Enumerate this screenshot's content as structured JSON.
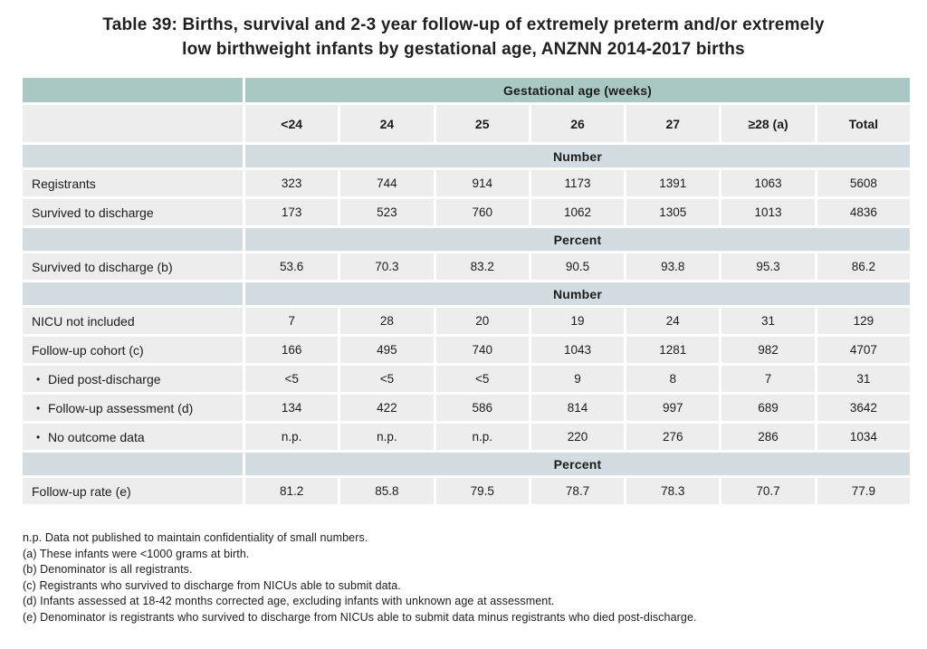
{
  "title": {
    "line1": "Table 39: Births, survival and 2-3 year follow-up of extremely preterm and/or extremely",
    "line2": "low birthweight infants by gestational age, ANZNN 2014-2017 births"
  },
  "colors": {
    "header_teal": "#a9c8c3",
    "section_band": "#d3dde1",
    "row_bg": "#ededed",
    "text": "#1c1c1c"
  },
  "icons": {
    "bullet": "•"
  },
  "table": {
    "group_header": "Gestational age (weeks)",
    "columns": [
      "<24",
      "24",
      "25",
      "26",
      "27",
      "≥28 (a)",
      "Total"
    ],
    "rows": [
      {
        "type": "section",
        "label": "Number"
      },
      {
        "type": "data",
        "bullet": false,
        "label": "Registrants",
        "values": [
          "323",
          "744",
          "914",
          "1173",
          "1391",
          "1063",
          "5608"
        ]
      },
      {
        "type": "data",
        "bullet": false,
        "label": "Survived to discharge",
        "values": [
          "173",
          "523",
          "760",
          "1062",
          "1305",
          "1013",
          "4836"
        ]
      },
      {
        "type": "section",
        "label": "Percent"
      },
      {
        "type": "data",
        "bullet": false,
        "label": "Survived to discharge (b)",
        "values": [
          "53.6",
          "70.3",
          "83.2",
          "90.5",
          "93.8",
          "95.3",
          "86.2"
        ]
      },
      {
        "type": "section",
        "label": "Number"
      },
      {
        "type": "data",
        "bullet": false,
        "label": "NICU not included",
        "values": [
          "7",
          "28",
          "20",
          "19",
          "24",
          "31",
          "129"
        ]
      },
      {
        "type": "data",
        "bullet": false,
        "label": "Follow-up cohort (c)",
        "values": [
          "166",
          "495",
          "740",
          "1043",
          "1281",
          "982",
          "4707"
        ]
      },
      {
        "type": "data",
        "bullet": true,
        "label": "Died post-discharge",
        "values": [
          "<5",
          "<5",
          "<5",
          "9",
          "8",
          "7",
          "31"
        ]
      },
      {
        "type": "data",
        "bullet": true,
        "label": "Follow-up assessment (d)",
        "values": [
          "134",
          "422",
          "586",
          "814",
          "997",
          "689",
          "3642"
        ]
      },
      {
        "type": "data",
        "bullet": true,
        "label": "No outcome data",
        "values": [
          "n.p.",
          "n.p.",
          "n.p.",
          "220",
          "276",
          "286",
          "1034"
        ]
      },
      {
        "type": "section",
        "label": "Percent"
      },
      {
        "type": "data",
        "bullet": false,
        "label": "Follow-up rate (e)",
        "values": [
          "81.2",
          "85.8",
          "79.5",
          "78.7",
          "78.3",
          "70.7",
          "77.9"
        ]
      }
    ]
  },
  "footnotes": [
    "n.p. Data not published to maintain confidentiality of small numbers.",
    "(a) These infants were <1000 grams at birth.",
    "(b) Denominator is all registrants.",
    "(c) Registrants who survived to discharge from NICUs able to submit data.",
    "(d) Infants assessed at 18-42 months corrected age, excluding infants with unknown age at assessment.",
    "(e) Denominator is registrants who survived to discharge from NICUs able to submit data minus registrants who died post-discharge."
  ]
}
